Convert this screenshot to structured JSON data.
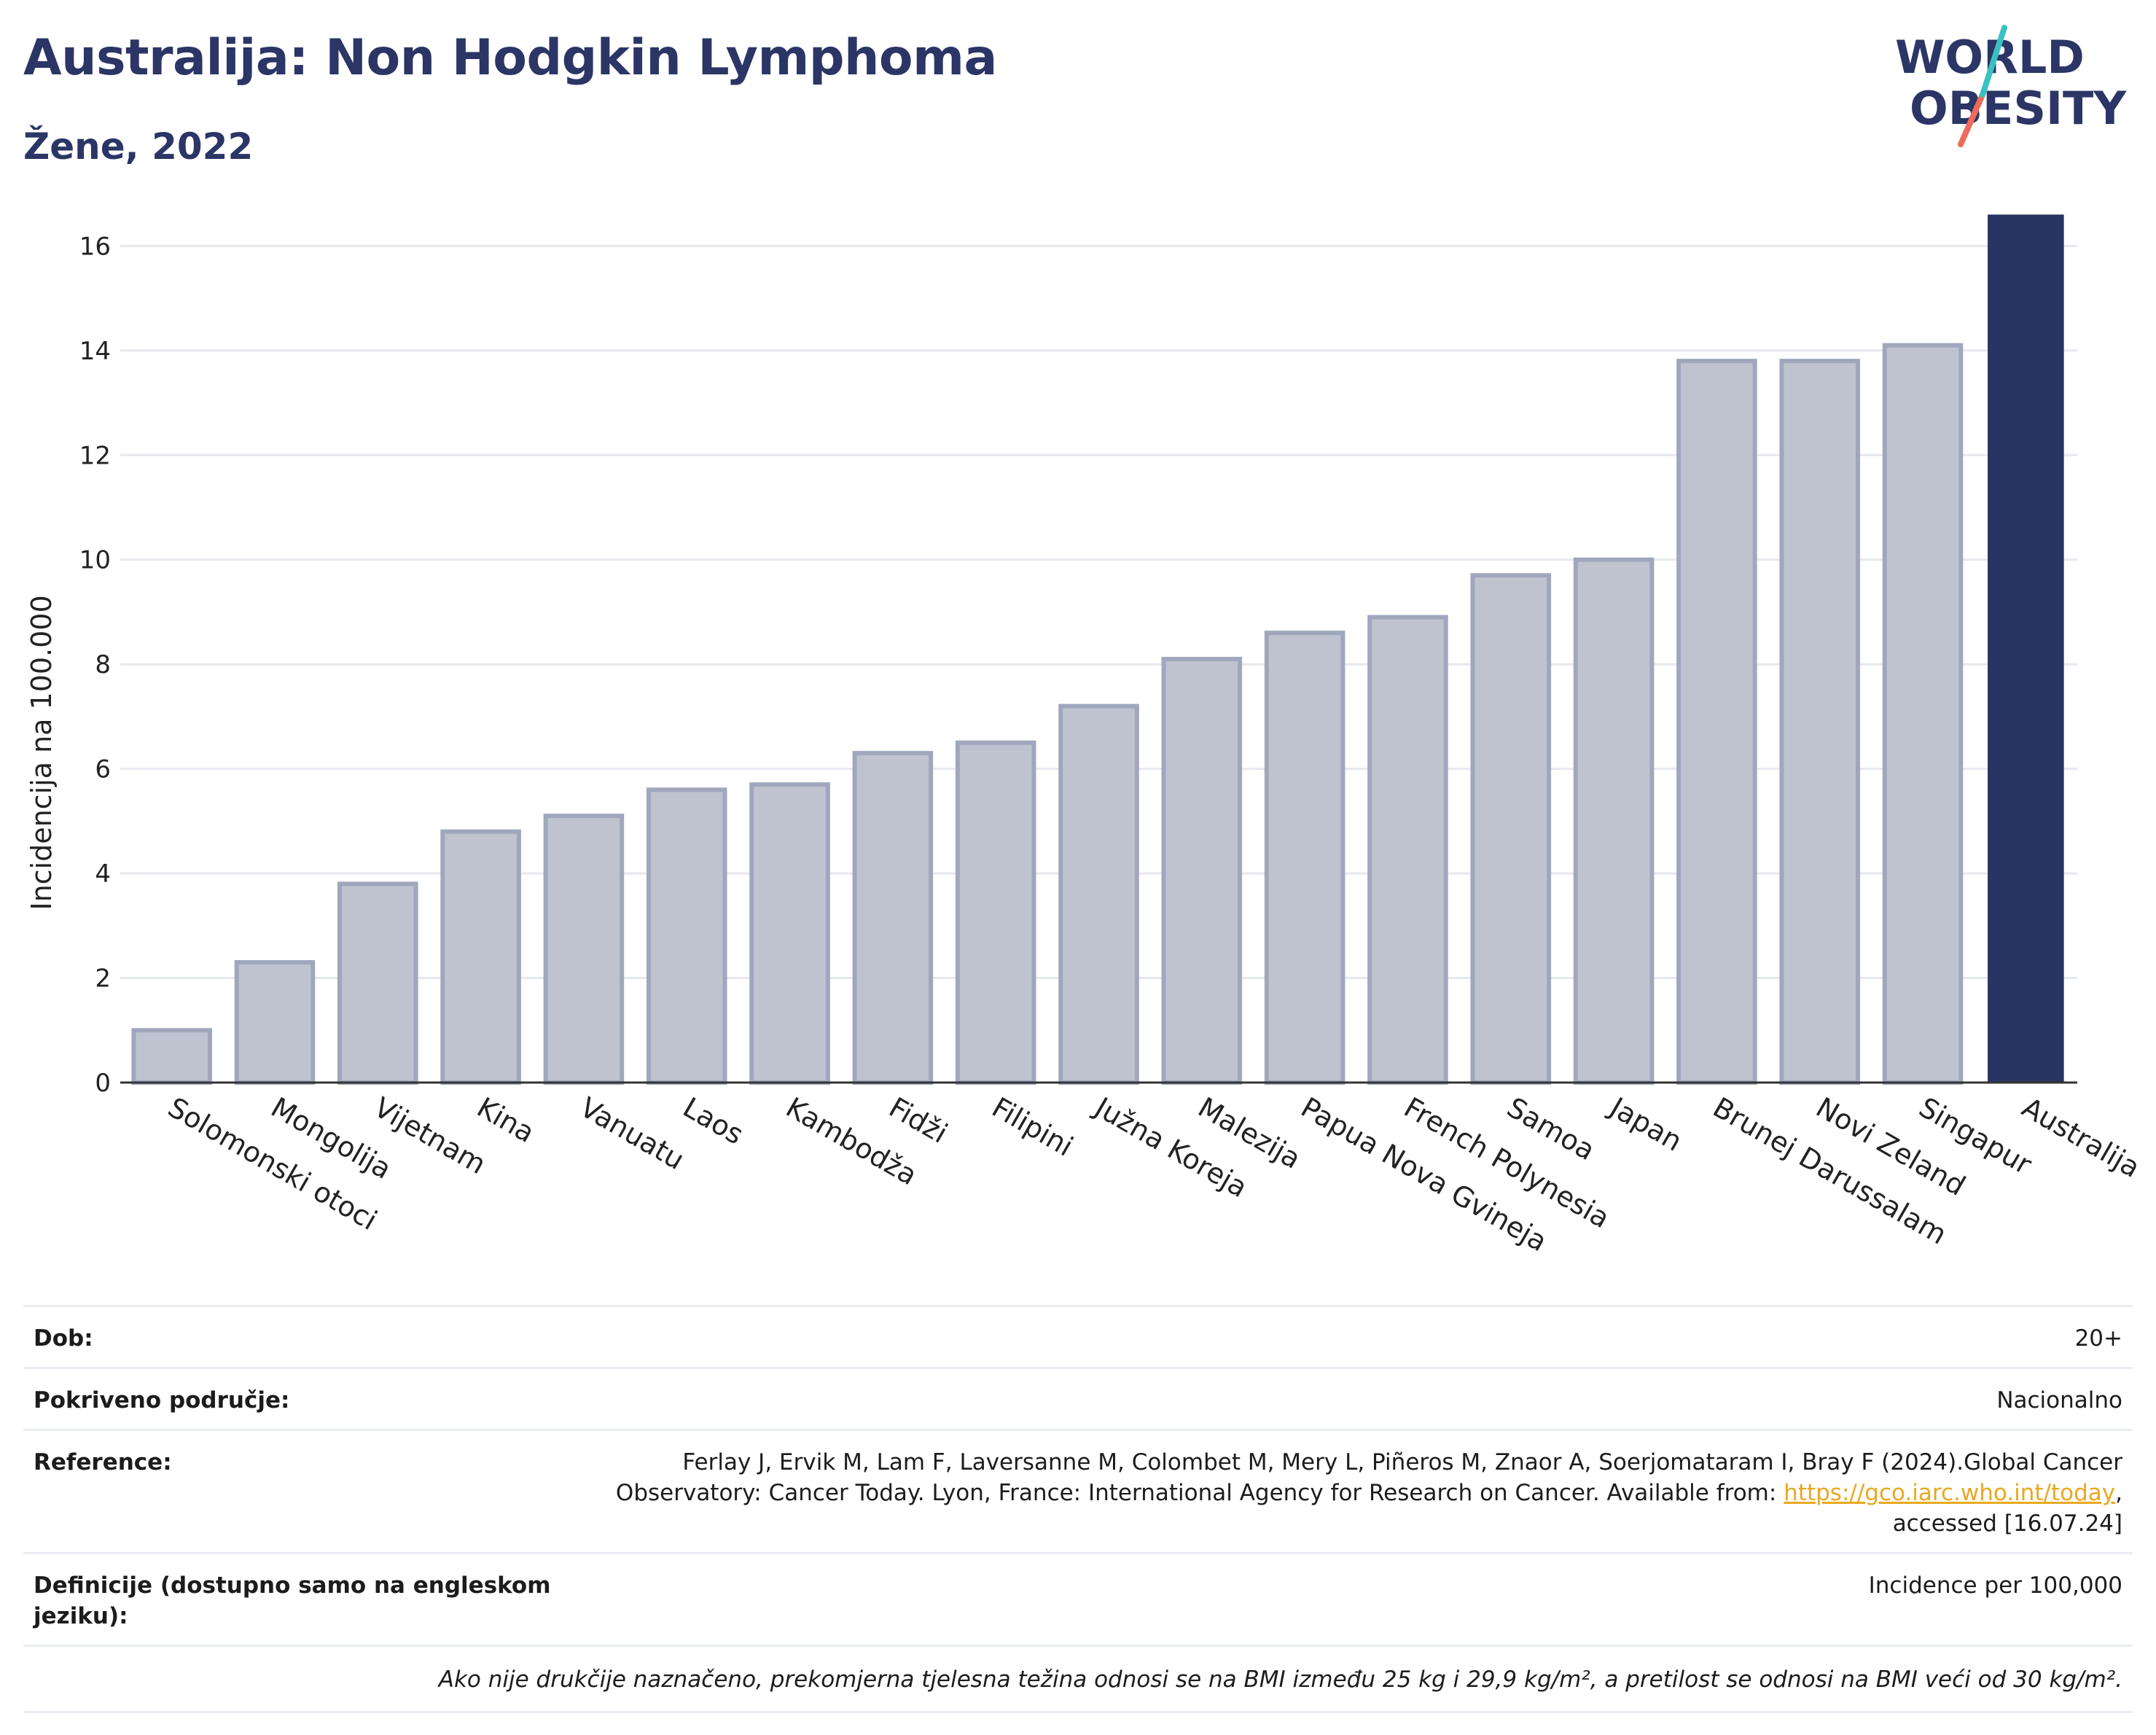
{
  "header": {
    "title": "Australija: Non Hodgkin Lymphoma",
    "subtitle": "Žene, 2022"
  },
  "logo": {
    "line1": "WORLD",
    "line2": "OBESITY"
  },
  "chart_data": {
    "type": "bar",
    "title": "Australija: Non Hodgkin Lymphoma",
    "subtitle": "Žene, 2022",
    "xlabel": "",
    "ylabel": "Incidencija na 100.000",
    "ylim": [
      0,
      16.8
    ],
    "yticks": [
      0,
      2,
      4,
      6,
      8,
      10,
      12,
      14,
      16
    ],
    "grid": true,
    "categories": [
      "Solomonski otoci",
      "Mongolija",
      "Vijetnam",
      "Kina",
      "Vanuatu",
      "Laos",
      "Kambodža",
      "Fidži",
      "Filipini",
      "Južna Koreja",
      "Malezija",
      "Papua Nova Gvineja",
      "French Polynesia",
      "Samoa",
      "Japan",
      "Brunej Darussalam",
      "Novi Zeland",
      "Singapur",
      "Australija"
    ],
    "values": [
      1.0,
      2.3,
      3.8,
      4.8,
      5.1,
      5.6,
      5.7,
      6.3,
      6.5,
      7.2,
      8.1,
      8.6,
      8.9,
      9.7,
      10.0,
      13.8,
      13.8,
      14.1,
      16.6
    ],
    "highlight": "Australija",
    "colors": {
      "bar": "#bfc3d0",
      "bar_border": "#a0a7bd",
      "highlight": "#283462",
      "grid": "#e6e8ee",
      "axis": "#333333"
    }
  },
  "meta": {
    "rows": [
      {
        "key": "Dob:",
        "value": "20+"
      },
      {
        "key": "Pokriveno područje:",
        "value": "Nacionalno"
      },
      {
        "key": "Reference:",
        "value_pre": "Ferlay J, Ervik M, Lam F, Laversanne M, Colombet M, Mery L, Piñeros M, Znaor A, Soerjomataram I, Bray F (2024).Global Cancer Observatory: Cancer Today. Lyon, France: International Agency for Research on Cancer. Available from: ",
        "link": "https://gco.iarc.who.int/today",
        "value_post": ", accessed [16.07.24]"
      },
      {
        "key": "Definicije (dostupno samo na engleskom jeziku):",
        "value": "Incidence per 100,000"
      }
    ],
    "note": "Ako nije drukčije naznačeno, prekomjerna tjelesna težina odnosi se na BMI između 25 kg i 29,9 kg/m², a pretilost se odnosi na BMI veći od 30 kg/m²."
  }
}
